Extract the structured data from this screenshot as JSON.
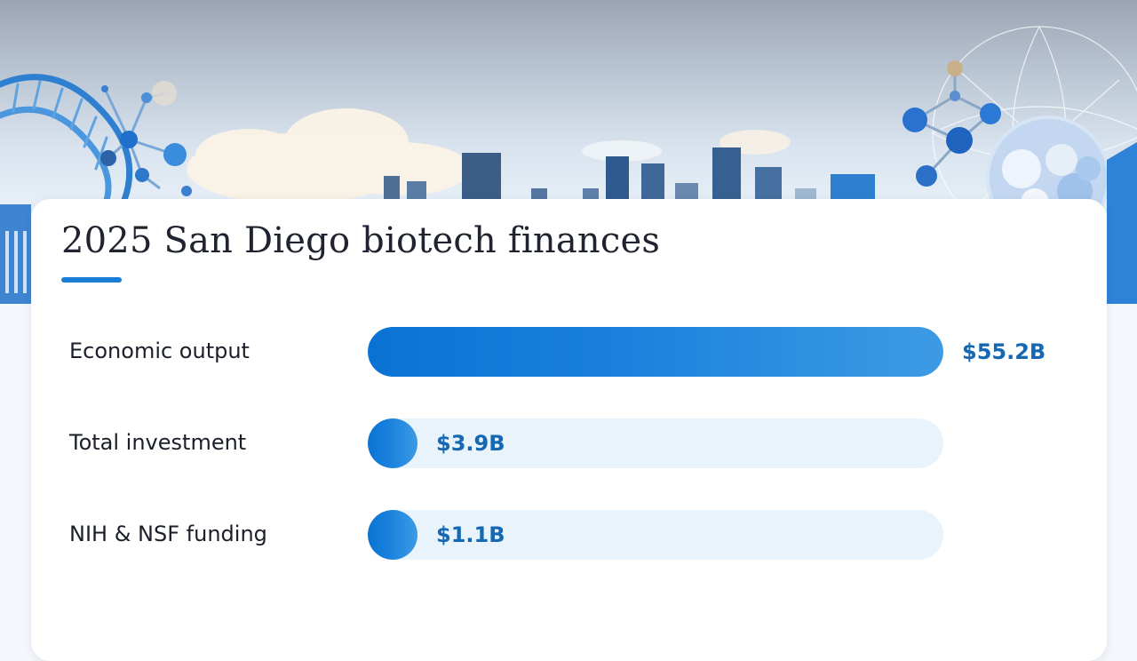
{
  "chart_data": {
    "type": "bar",
    "orientation": "horizontal",
    "title": "2025 San Diego biotech finances",
    "categories": [
      "Economic output",
      "Total investment",
      "NIH & NSF funding"
    ],
    "values": [
      55.2,
      3.9,
      1.1
    ],
    "value_labels": [
      "$55.2B",
      "$3.9B",
      "$1.1B"
    ],
    "unit": "B",
    "xlim": [
      0,
      55.2
    ],
    "grid": false,
    "legend": "none",
    "colors": {
      "bar_fill": "#1a82dd",
      "track": "#e8f3fc",
      "value_text": "#1668b3",
      "accent": "#1b7ed6"
    }
  },
  "header_illustration": {
    "icons": [
      "dna-helix-icon",
      "molecule-icon",
      "city-skyline-icon",
      "cell-cluster-icon",
      "network-globe-icon"
    ]
  }
}
